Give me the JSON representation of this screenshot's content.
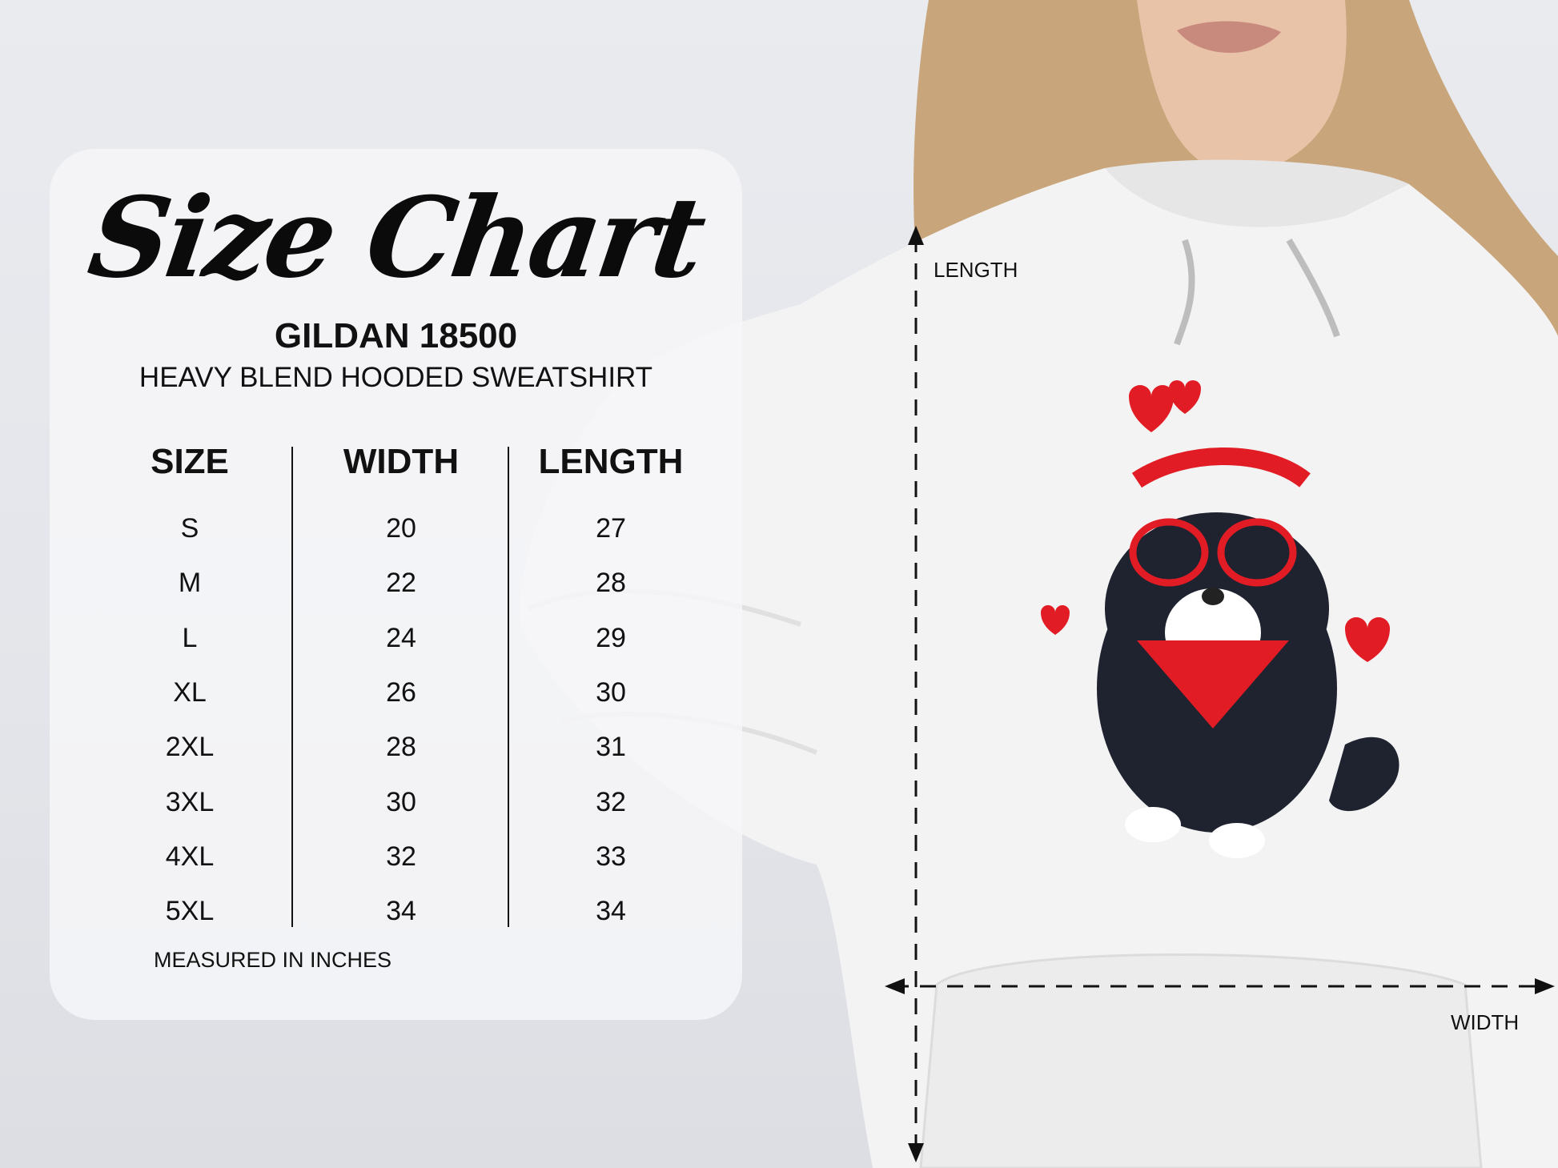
{
  "title": "Size Chart",
  "product": {
    "model": "GILDAN 18500",
    "description": "HEAVY BLEND HOODED SWEATSHIRT"
  },
  "table": {
    "headers": [
      "SIZE",
      "WIDTH",
      "LENGTH"
    ],
    "rows": [
      [
        "S",
        "20",
        "27"
      ],
      [
        "M",
        "22",
        "28"
      ],
      [
        "L",
        "24",
        "29"
      ],
      [
        "XL",
        "26",
        "30"
      ],
      [
        "2XL",
        "28",
        "31"
      ],
      [
        "3XL",
        "30",
        "32"
      ],
      [
        "4XL",
        "32",
        "33"
      ],
      [
        "5XL",
        "34",
        "34"
      ]
    ]
  },
  "note": "MEASURED IN INCHES",
  "measurements": {
    "length_label": "LENGTH",
    "width_label": "WIDTH"
  },
  "colors": {
    "hoodie": "#f4f4f4",
    "hair": "#c9a77a",
    "heart": "#e21c24",
    "text": "#111111"
  }
}
